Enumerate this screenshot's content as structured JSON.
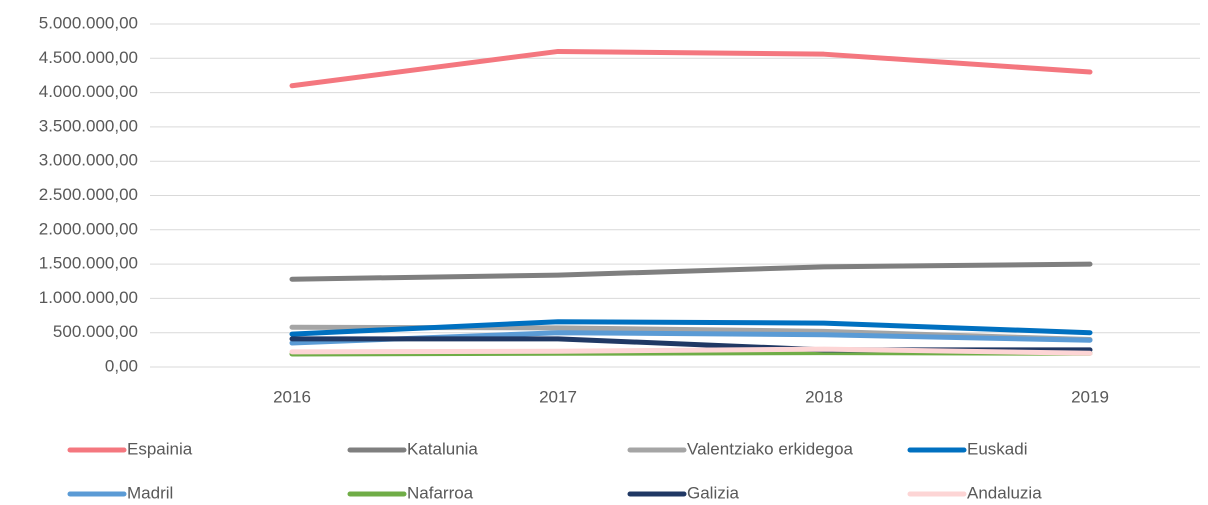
{
  "chart_data": {
    "type": "line",
    "categories": [
      "2016",
      "2017",
      "2018",
      "2019"
    ],
    "ylim": [
      0,
      5000000
    ],
    "yticks": [
      {
        "value": 0,
        "label": "0,00"
      },
      {
        "value": 500000,
        "label": "500.000,00"
      },
      {
        "value": 1000000,
        "label": "1.000.000,00"
      },
      {
        "value": 1500000,
        "label": "1.500.000,00"
      },
      {
        "value": 2000000,
        "label": "2.000.000,00"
      },
      {
        "value": 2500000,
        "label": "2.500.000,00"
      },
      {
        "value": 3000000,
        "label": "3.000.000,00"
      },
      {
        "value": 3500000,
        "label": "3.500.000,00"
      },
      {
        "value": 4000000,
        "label": "4.000.000,00"
      },
      {
        "value": 4500000,
        "label": "4.500.000,00"
      },
      {
        "value": 5000000,
        "label": "5.000.000,00"
      }
    ],
    "grid": true,
    "legend": "bottom",
    "series": [
      {
        "name": "Espainia",
        "color": "#f4777f",
        "values": [
          4100000,
          4600000,
          4560000,
          4300000
        ]
      },
      {
        "name": "Katalunia",
        "color": "#7f7f7f",
        "values": [
          1280000,
          1340000,
          1460000,
          1500000
        ]
      },
      {
        "name": "Valentziako erkidegoa",
        "color": "#a5a5a5",
        "values": [
          580000,
          570000,
          520000,
          400000
        ]
      },
      {
        "name": "Euskadi",
        "color": "#0070c0",
        "values": [
          480000,
          660000,
          640000,
          500000
        ]
      },
      {
        "name": "Madril",
        "color": "#5b9bd5",
        "values": [
          350000,
          500000,
          470000,
          390000
        ]
      },
      {
        "name": "Nafarroa",
        "color": "#70ad47",
        "values": [
          190000,
          200000,
          210000,
          200000
        ]
      },
      {
        "name": "Galizia",
        "color": "#203864",
        "values": [
          410000,
          410000,
          250000,
          250000
        ]
      },
      {
        "name": "Andaluzia",
        "color": "#fdd5d5",
        "values": [
          220000,
          230000,
          260000,
          200000
        ]
      }
    ]
  }
}
